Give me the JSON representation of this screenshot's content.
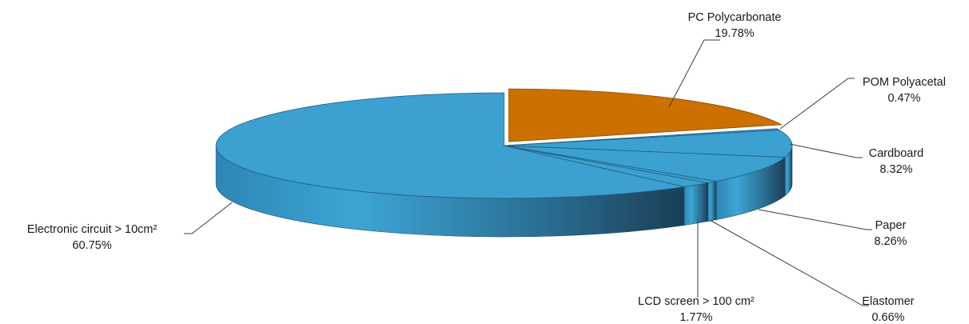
{
  "chart_data": {
    "type": "pie",
    "style": "3d-exploded",
    "legend": "none",
    "slices": [
      {
        "label": "PC Polycarbonate",
        "value": 19.78,
        "value_text": "19.78%",
        "color": "#CC7000",
        "exploded": true
      },
      {
        "label": "POM Polyacetal",
        "value": 0.47,
        "value_text": "0.47%",
        "color": "#3CA0D0"
      },
      {
        "label": "Cardboard",
        "value": 8.32,
        "value_text": "8.32%",
        "color": "#3CA0D0"
      },
      {
        "label": "Paper",
        "value": 8.26,
        "value_text": "8.26%",
        "color": "#3CA0D0"
      },
      {
        "label": "Elastomer",
        "value": 0.66,
        "value_text": "0.66%",
        "color": "#3CA0D0"
      },
      {
        "label": "LCD screen > 100 cm²",
        "value": 1.77,
        "value_text": "1.77%",
        "color": "#3CA0D0"
      },
      {
        "label": "Electronic circuit > 10cm²",
        "value": 60.75,
        "value_text": "60.75%",
        "color": "#3CA0D0"
      }
    ]
  }
}
